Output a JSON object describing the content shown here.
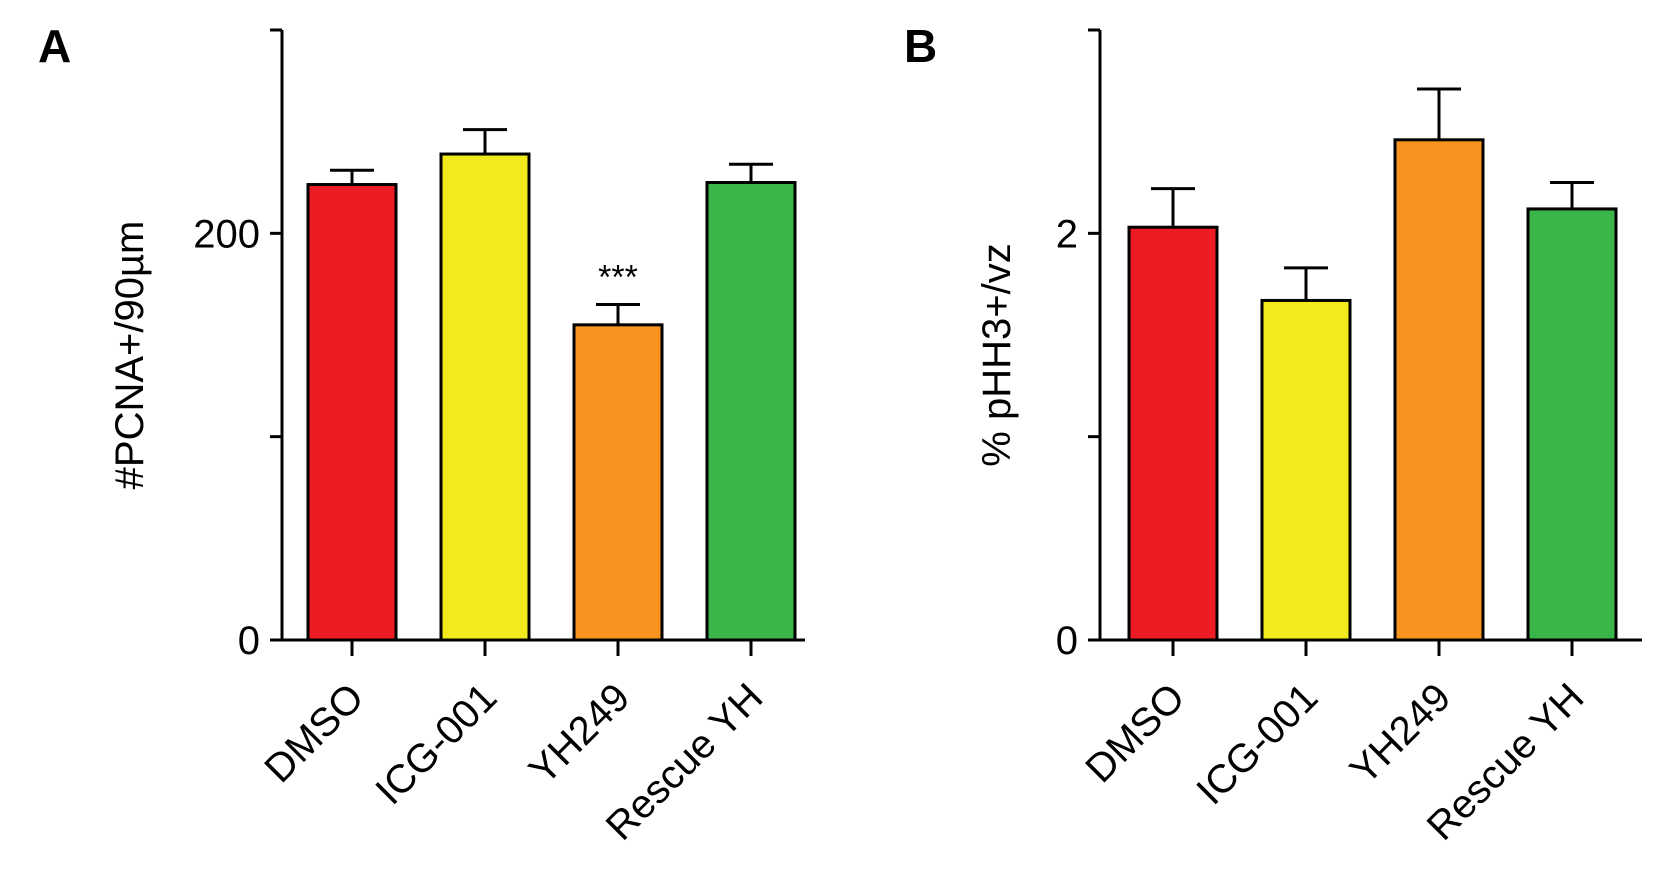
{
  "chart_data": [
    {
      "panel": "A",
      "type": "bar",
      "title": "",
      "xlabel": "",
      "ylabel": "#PCNA+/90µm",
      "ylim": [
        0,
        300
      ],
      "yticks": [
        0,
        100,
        200,
        300
      ],
      "ytick_labels": [
        "0",
        "",
        "200",
        ""
      ],
      "categories": [
        "DMSO",
        "ICG-001",
        "YH249",
        "Rescue YH"
      ],
      "values": [
        224,
        239,
        155,
        225
      ],
      "errors": [
        7,
        12,
        10,
        9
      ],
      "colors": [
        "#ED1C24",
        "#F2EA1D",
        "#F7931E",
        "#39B54A"
      ],
      "annotations": [
        {
          "category": "YH249",
          "text": "***"
        }
      ],
      "grid": false
    },
    {
      "panel": "B",
      "type": "bar",
      "title": "",
      "xlabel": "",
      "ylabel": "% pHH3+/vz",
      "ylim": [
        0,
        3
      ],
      "yticks": [
        0,
        1,
        2,
        3
      ],
      "ytick_labels": [
        "0",
        "",
        "2",
        ""
      ],
      "categories": [
        "DMSO",
        "ICG-001",
        "YH249",
        "Rescue YH"
      ],
      "values": [
        2.03,
        1.67,
        2.46,
        2.12
      ],
      "errors": [
        0.19,
        0.16,
        0.25,
        0.13
      ],
      "colors": [
        "#ED1C24",
        "#F2EA1D",
        "#F7931E",
        "#39B54A"
      ],
      "annotations": [],
      "grid": false
    }
  ]
}
